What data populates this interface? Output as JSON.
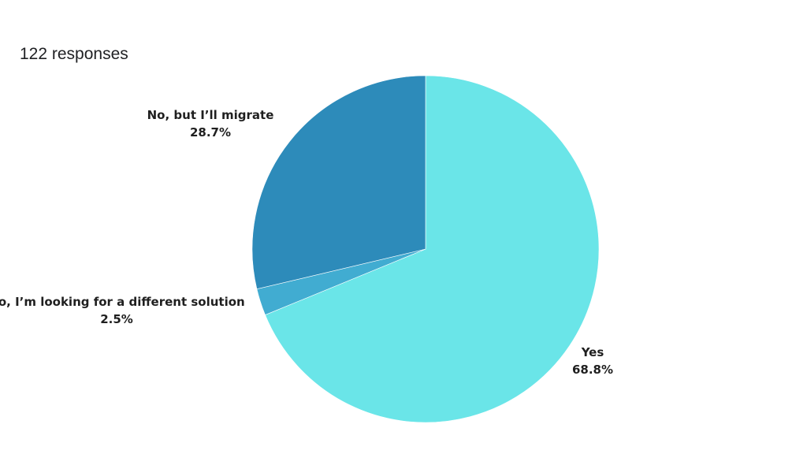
{
  "header": {
    "responses": "122 responses"
  },
  "chart_data": {
    "type": "pie",
    "title": "",
    "slices": [
      {
        "label": "Yes",
        "value": 68.8,
        "value_label": "68.8%",
        "color": "#6ae5e8"
      },
      {
        "label": "No, I’m looking for a different solution",
        "value": 2.5,
        "value_label": "2.5%",
        "color": "#41acd1"
      },
      {
        "label": "No, but I’ll migrate",
        "value": 28.7,
        "value_label": "28.7%",
        "color": "#2d8bba"
      }
    ],
    "start_angle": "12 o'clock",
    "direction": "clockwise"
  }
}
